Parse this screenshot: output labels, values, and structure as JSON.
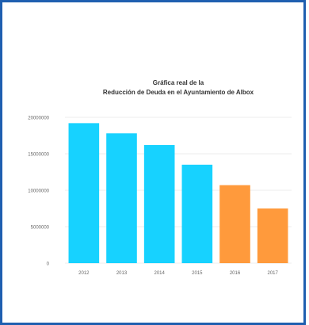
{
  "chart_data": {
    "type": "bar",
    "title_line1": "Gráfica real de la",
    "title_line2": "Reducción de Deuda en el Ayuntamiento de Albox",
    "categories": [
      "2012",
      "2013",
      "2014",
      "2015",
      "2016",
      "2017"
    ],
    "values": [
      19200000,
      17800000,
      16200000,
      13500000,
      10700000,
      7500000
    ],
    "yticks": [
      "0",
      "5000000",
      "10000000",
      "15000000",
      "20000000"
    ],
    "ytick_values": [
      0,
      5000000,
      10000000,
      15000000,
      20000000
    ],
    "ylim": [
      0,
      20000000
    ],
    "xlabel": "",
    "ylabel": "",
    "grid": true,
    "colors": [
      "#17d2ff",
      "#17d2ff",
      "#17d2ff",
      "#17d2ff",
      "#ff9a3c",
      "#ff9a3c"
    ]
  }
}
